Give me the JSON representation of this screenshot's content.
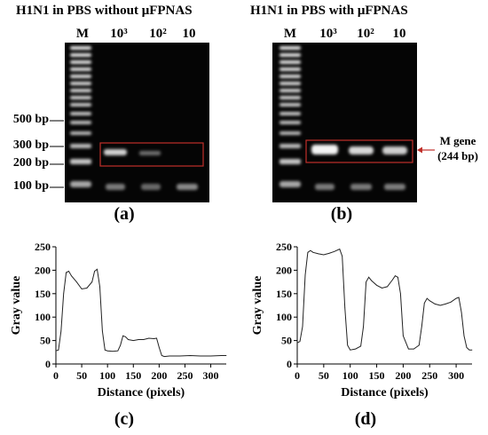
{
  "gel_a": {
    "title": "H1N1 in PBS without μFPNAS",
    "lanes": [
      "M",
      "10³",
      "10²",
      "10"
    ],
    "panel_label": "(a)"
  },
  "gel_b": {
    "title": "H1N1 in PBS with μFPNAS",
    "lanes": [
      "M",
      "10³",
      "10²",
      "10"
    ],
    "panel_label": "(b)",
    "annotation_line1": "M gene",
    "annotation_line2": "(244 bp)"
  },
  "ladder_labels": [
    "500 bp",
    "300 bp",
    "200 bp",
    "100 bp"
  ],
  "highlight_color": "#c0302a",
  "chart_data": [
    {
      "type": "line",
      "panel_label": "(c)",
      "xlabel": "Distance (pixels)",
      "ylabel": "Gray value",
      "xlim": [
        0,
        330
      ],
      "ylim": [
        0,
        250
      ],
      "xticks": [
        0,
        50,
        100,
        150,
        200,
        250,
        300
      ],
      "yticks": [
        0,
        50,
        100,
        150,
        200,
        250
      ],
      "grid": false,
      "x": [
        0,
        5,
        10,
        15,
        20,
        25,
        30,
        40,
        50,
        60,
        70,
        75,
        80,
        85,
        90,
        95,
        100,
        110,
        120,
        125,
        130,
        135,
        140,
        150,
        160,
        170,
        180,
        190,
        195,
        200,
        205,
        210,
        220,
        240,
        260,
        280,
        300,
        320,
        330
      ],
      "y": [
        28,
        30,
        70,
        150,
        195,
        198,
        188,
        175,
        160,
        162,
        175,
        198,
        202,
        165,
        70,
        30,
        28,
        27,
        28,
        40,
        60,
        58,
        52,
        50,
        52,
        52,
        55,
        54,
        55,
        35,
        18,
        16,
        17,
        17,
        18,
        17,
        17,
        18,
        18
      ]
    },
    {
      "type": "line",
      "panel_label": "(d)",
      "xlabel": "Distance (pixels)",
      "ylabel": "Gray value",
      "xlim": [
        0,
        330
      ],
      "ylim": [
        0,
        250
      ],
      "xticks": [
        0,
        50,
        100,
        150,
        200,
        250,
        300
      ],
      "yticks": [
        0,
        50,
        100,
        150,
        200,
        250
      ],
      "grid": false,
      "x": [
        0,
        5,
        10,
        15,
        20,
        25,
        30,
        40,
        50,
        60,
        70,
        80,
        85,
        90,
        95,
        100,
        110,
        120,
        125,
        130,
        135,
        140,
        150,
        160,
        170,
        180,
        185,
        190,
        195,
        200,
        210,
        220,
        230,
        235,
        240,
        245,
        250,
        260,
        270,
        280,
        290,
        300,
        305,
        310,
        315,
        320,
        325,
        330
      ],
      "y": [
        45,
        48,
        80,
        190,
        238,
        242,
        238,
        235,
        233,
        236,
        240,
        245,
        230,
        120,
        40,
        30,
        32,
        38,
        80,
        175,
        185,
        178,
        168,
        162,
        165,
        180,
        188,
        185,
        150,
        60,
        32,
        32,
        40,
        80,
        130,
        140,
        135,
        128,
        125,
        128,
        132,
        140,
        142,
        110,
        60,
        35,
        30,
        30
      ]
    }
  ]
}
